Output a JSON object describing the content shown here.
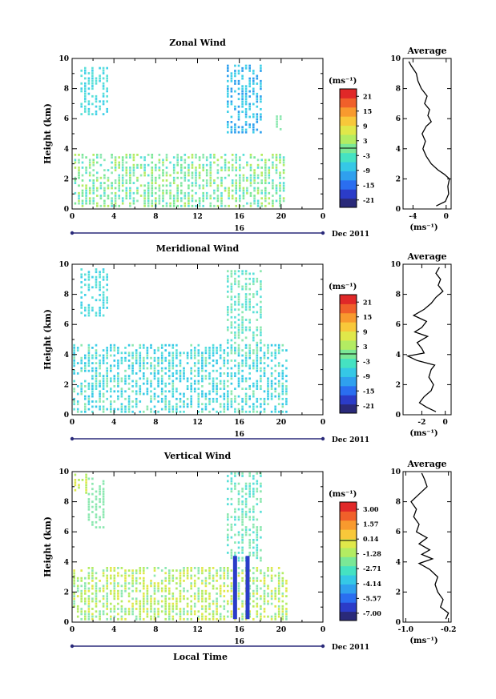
{
  "colors": {
    "frame": "#000000",
    "colorscale": [
      "#2a2a7a",
      "#2b3cc8",
      "#2a6ef0",
      "#2fa0ee",
      "#35c8e6",
      "#45e2c2",
      "#7ae896",
      "#b3ec62",
      "#e0e84a",
      "#f8c83a",
      "#f89a2e",
      "#f0602a",
      "#e02828"
    ],
    "wind_fill": [
      "#40d0e8",
      "#5ae0d8",
      "#8ce8b0"
    ]
  },
  "chart_data": [
    {
      "type": "heatmap",
      "title": "Zonal Wind",
      "ylabel": "Height (km)",
      "xlabel": "",
      "x_ticks": [
        "0",
        "4",
        "8",
        "12",
        "16",
        "20",
        "0"
      ],
      "y_ticks": [
        "0",
        "2",
        "4",
        "6",
        "8",
        "10"
      ],
      "xlim": [
        0,
        24
      ],
      "ylim": [
        0,
        10
      ],
      "date_axis": {
        "label": "16",
        "suffix": "Dec 2011"
      },
      "colorbar": {
        "unit": "(ms⁻¹)",
        "ticks": [
          "21",
          "15",
          "9",
          "3",
          "-3",
          "-9",
          "-15",
          "-21"
        ],
        "range": [
          -24,
          24
        ]
      },
      "profile": {
        "title": "Average",
        "xlabel": "(ms⁻¹)",
        "x_ticks": [
          "-4",
          "0"
        ],
        "y_ticks": [
          "0",
          "2",
          "4",
          "6",
          "8",
          "10"
        ],
        "xlim": [
          -5.2,
          0.6
        ],
        "heights": [
          0.2,
          0.5,
          1.0,
          1.5,
          2.0,
          2.3,
          2.6,
          3.0,
          3.5,
          4.0,
          4.5,
          5.0,
          5.5,
          5.8,
          6.2,
          6.6,
          7.0,
          7.5,
          8.0,
          8.5,
          9.0,
          9.5,
          9.8
        ],
        "values": [
          -1.2,
          -0.1,
          0.3,
          0.2,
          0.4,
          -0.2,
          -1.0,
          -1.8,
          -2.4,
          -2.8,
          -2.5,
          -2.9,
          -2.4,
          -1.8,
          -2.2,
          -2.0,
          -2.6,
          -2.3,
          -3.0,
          -3.4,
          -3.6,
          -4.2,
          -4.5
        ]
      }
    },
    {
      "type": "heatmap",
      "title": "Meridional Wind",
      "ylabel": "Height (km)",
      "xlabel": "",
      "x_ticks": [
        "0",
        "4",
        "8",
        "12",
        "16",
        "20",
        "0"
      ],
      "y_ticks": [
        "0",
        "2",
        "4",
        "6",
        "8",
        "10"
      ],
      "xlim": [
        0,
        24
      ],
      "ylim": [
        0,
        10
      ],
      "date_axis": {
        "label": "16",
        "suffix": "Dec 2011"
      },
      "colorbar": {
        "unit": "(ms⁻¹)",
        "ticks": [
          "21",
          "15",
          "9",
          "3",
          "-3",
          "-9",
          "-15",
          "-21"
        ],
        "range": [
          -24,
          24
        ]
      },
      "profile": {
        "title": "Average",
        "xlabel": "(ms⁻¹)",
        "x_ticks": [
          "-2",
          "0"
        ],
        "y_ticks": [
          "0",
          "2",
          "4",
          "6",
          "8",
          "10"
        ],
        "xlim": [
          -3.6,
          0.5
        ],
        "heights": [
          0.2,
          0.5,
          0.8,
          1.2,
          1.6,
          2.0,
          2.5,
          3.0,
          3.3,
          3.6,
          3.9,
          4.1,
          4.4,
          4.8,
          5.2,
          5.5,
          5.8,
          6.2,
          6.6,
          7.0,
          7.4,
          7.8,
          8.2,
          8.6,
          9.0,
          9.4,
          9.8
        ],
        "values": [
          -0.8,
          -1.6,
          -2.2,
          -1.8,
          -1.2,
          -1.0,
          -1.4,
          -1.2,
          -0.9,
          -2.4,
          -3.2,
          -1.8,
          -2.0,
          -2.4,
          -1.5,
          -2.6,
          -2.0,
          -1.6,
          -2.7,
          -1.8,
          -1.2,
          -0.8,
          -0.2,
          -0.6,
          -0.4,
          -0.8,
          -0.5
        ]
      }
    },
    {
      "type": "heatmap",
      "title": "Vertical Wind",
      "ylabel": "Height (km)",
      "xlabel": "Local Time",
      "x_ticks": [
        "0",
        "4",
        "8",
        "12",
        "16",
        "20",
        "0"
      ],
      "y_ticks": [
        "0",
        "2",
        "4",
        "6",
        "8",
        "10"
      ],
      "xlim": [
        0,
        24
      ],
      "ylim": [
        0,
        10
      ],
      "date_axis": {
        "label": "16",
        "suffix": "Dec 2011"
      },
      "colorbar": {
        "unit": "(ms⁻¹)",
        "ticks": [
          "3.00",
          "1.57",
          "0.14",
          "-1.28",
          "-2.71",
          "-4.14",
          "-5.57",
          "-7.00"
        ],
        "range": [
          -7.7,
          3.7
        ]
      },
      "profile": {
        "title": "Average",
        "xlabel": "(ms⁻¹)",
        "x_ticks": [
          "-1.0",
          "-0.2"
        ],
        "y_ticks": [
          "0",
          "2",
          "4",
          "6",
          "8",
          "10"
        ],
        "xlim": [
          -1.05,
          -0.15
        ],
        "heights": [
          0.2,
          0.6,
          1.0,
          1.5,
          2.0,
          2.5,
          3.0,
          3.5,
          3.9,
          4.2,
          4.5,
          4.8,
          5.2,
          5.6,
          6.0,
          6.5,
          7.0,
          7.5,
          8.0,
          8.5,
          9.0,
          9.5,
          9.9
        ],
        "values": [
          -0.25,
          -0.2,
          -0.35,
          -0.3,
          -0.4,
          -0.45,
          -0.4,
          -0.55,
          -0.75,
          -0.5,
          -0.7,
          -0.55,
          -0.75,
          -0.6,
          -0.8,
          -0.75,
          -0.85,
          -0.8,
          -0.9,
          -0.75,
          -0.6,
          -0.65,
          -0.7
        ]
      }
    }
  ]
}
